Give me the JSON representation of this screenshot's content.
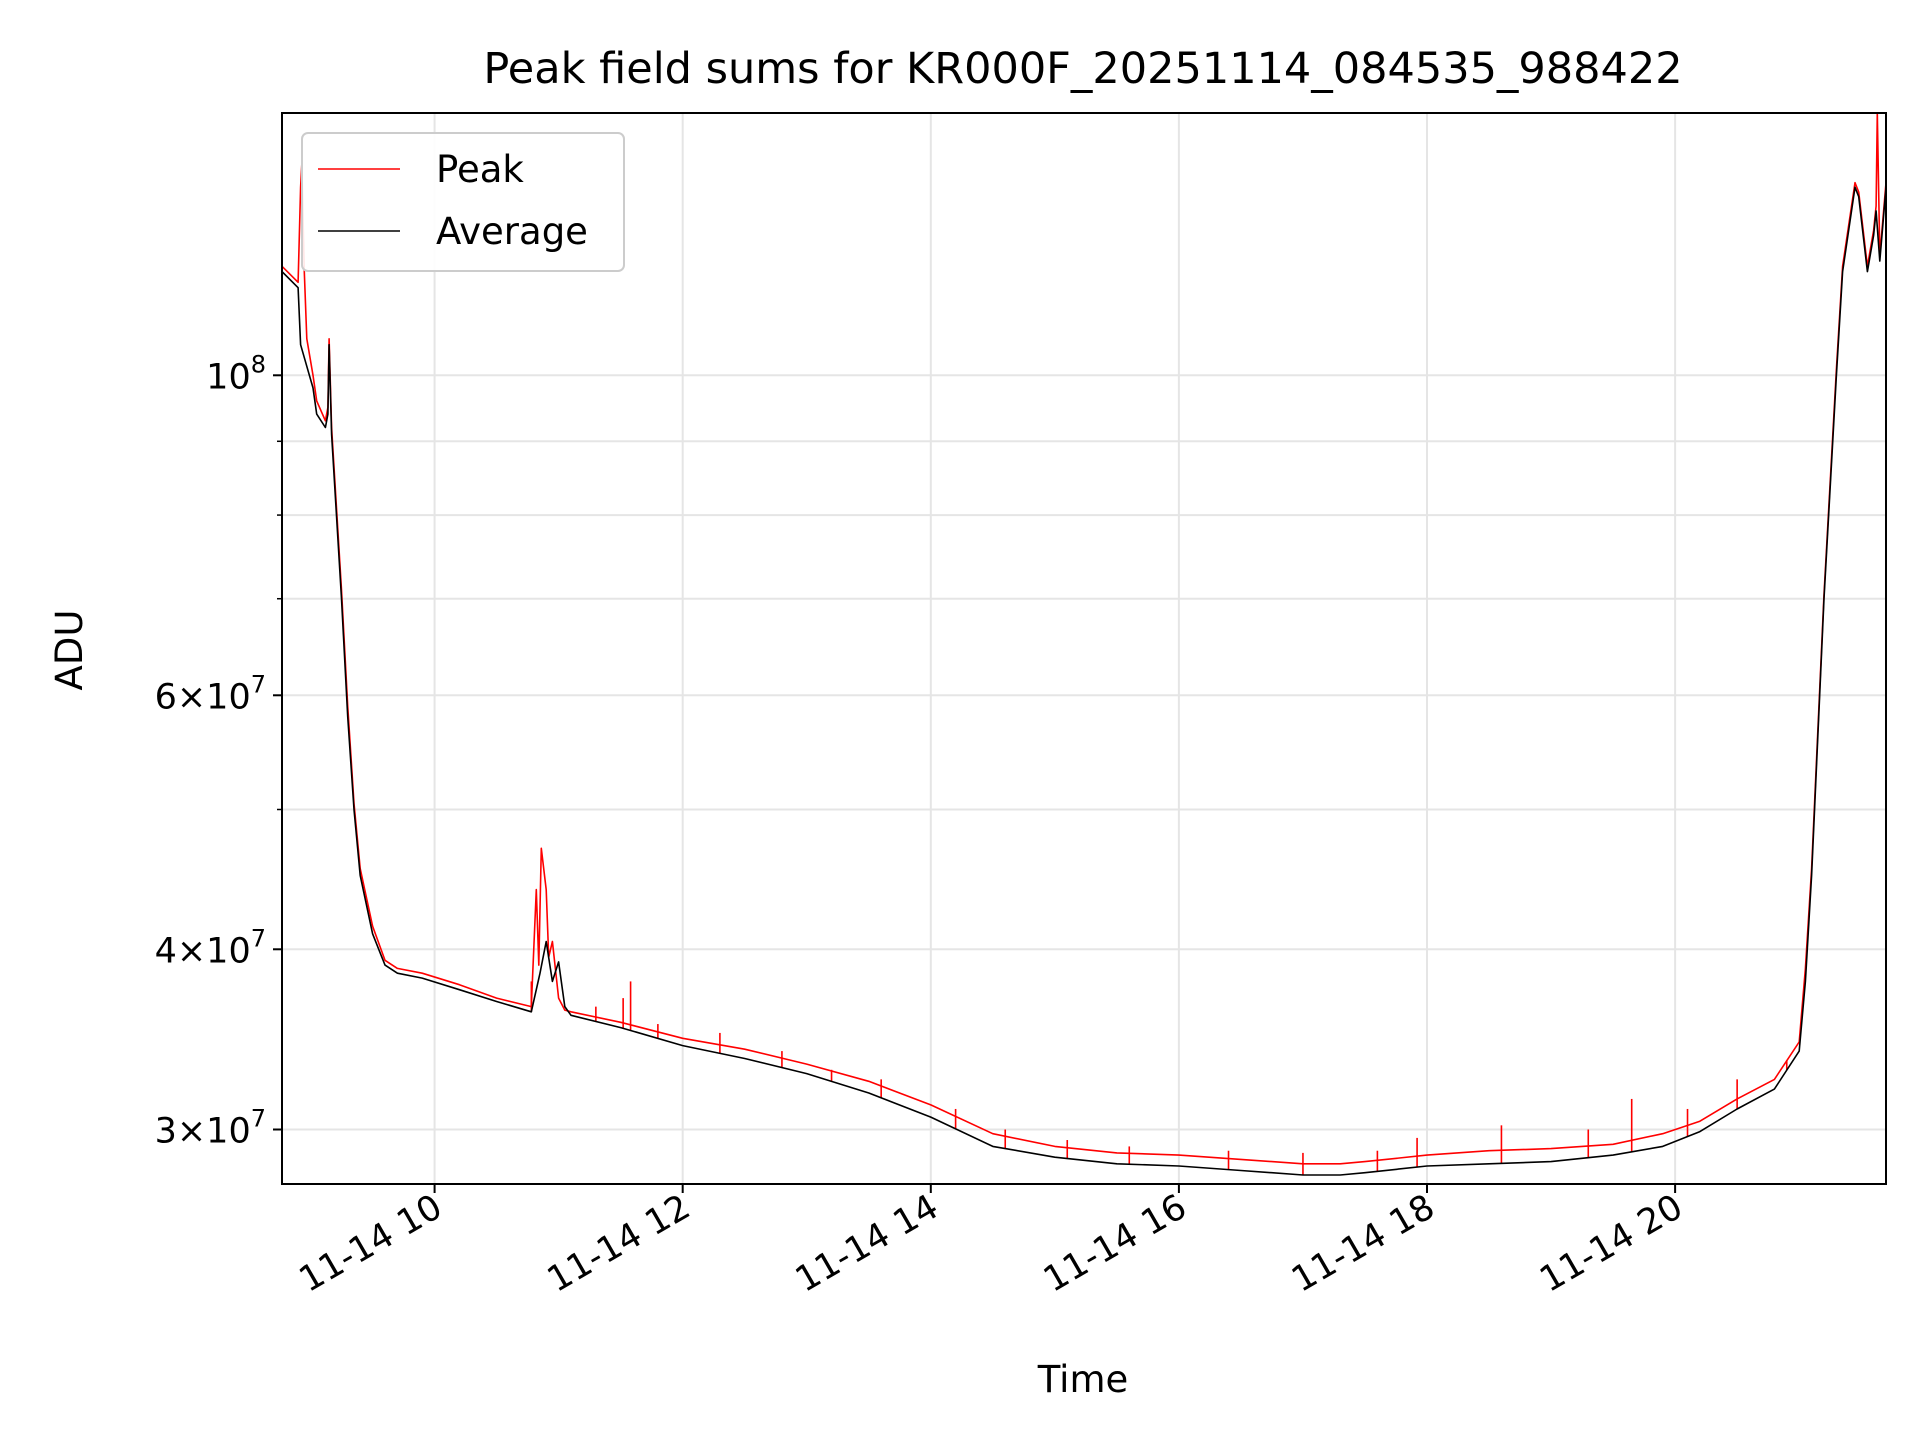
{
  "chart_data": {
    "type": "line",
    "title": "Peak field sums for KR000F_20251114_084535_988422",
    "xlabel": "Time",
    "ylabel": "ADU",
    "yscale": "log",
    "x_unit": "hours since 11-14 00:00",
    "xlim": [
      8.77,
      21.7
    ],
    "ylim": [
      27500000,
      152000000
    ],
    "grid": true,
    "legend_position": "upper-left",
    "x_ticks": [
      {
        "value": 10,
        "label": "11-14 10"
      },
      {
        "value": 12,
        "label": "11-14 12"
      },
      {
        "value": 14,
        "label": "11-14 14"
      },
      {
        "value": 16,
        "label": "11-14 16"
      },
      {
        "value": 18,
        "label": "11-14 18"
      },
      {
        "value": 20,
        "label": "11-14 20"
      }
    ],
    "y_ticks": [
      {
        "value": 30000000,
        "base": "3",
        "exp": "7"
      },
      {
        "value": 40000000,
        "base": "4",
        "exp": "7"
      },
      {
        "value": 60000000,
        "base": "6",
        "exp": "7"
      },
      {
        "value": 100000000,
        "base": "10",
        "exp": "8"
      }
    ],
    "y_minor": [
      50000000,
      70000000,
      80000000,
      90000000
    ],
    "series": [
      {
        "name": "Average",
        "color": "#000000",
        "x": [
          8.77,
          8.9,
          8.92,
          9.02,
          9.05,
          9.12,
          9.14,
          9.15,
          9.17,
          9.25,
          9.3,
          9.35,
          9.4,
          9.5,
          9.6,
          9.7,
          9.9,
          10.2,
          10.5,
          10.78,
          10.85,
          10.9,
          10.95,
          11.0,
          11.05,
          11.1,
          11.5,
          12.0,
          12.5,
          13.0,
          13.5,
          14.0,
          14.5,
          15.0,
          15.5,
          16.0,
          16.5,
          17.0,
          17.3,
          17.5,
          18.0,
          18.5,
          19.0,
          19.5,
          19.9,
          20.2,
          20.5,
          20.8,
          21.0,
          21.05,
          21.1,
          21.2,
          21.3,
          21.35,
          21.45,
          21.48,
          21.55,
          21.6,
          21.62,
          21.65,
          21.7
        ],
        "y": [
          118000000,
          115000000,
          105000000,
          98000000,
          94000000,
          92000000,
          94000000,
          105000000,
          91000000,
          70000000,
          58000000,
          50000000,
          45000000,
          41000000,
          39000000,
          38500000,
          38200000,
          37500000,
          36800000,
          36200000,
          38500000,
          40500000,
          38000000,
          39200000,
          36500000,
          36000000,
          35300000,
          34300000,
          33600000,
          32800000,
          31800000,
          30600000,
          29200000,
          28700000,
          28400000,
          28300000,
          28100000,
          27900000,
          27900000,
          28000000,
          28300000,
          28400000,
          28500000,
          28800000,
          29200000,
          29900000,
          31000000,
          32000000,
          34000000,
          38000000,
          45000000,
          70000000,
          100000000,
          118000000,
          135000000,
          133000000,
          118000000,
          125000000,
          130000000,
          120000000,
          135000000
        ]
      },
      {
        "name": "Peak",
        "color": "#ff0000",
        "x": [
          8.77,
          8.9,
          8.92,
          8.93,
          8.95,
          8.97,
          9.02,
          9.05,
          9.12,
          9.14,
          9.15,
          9.17,
          9.25,
          9.3,
          9.35,
          9.4,
          9.5,
          9.6,
          9.7,
          9.9,
          10.2,
          10.5,
          10.78,
          10.82,
          10.84,
          10.86,
          10.9,
          10.92,
          10.95,
          11.0,
          11.05,
          11.1,
          11.5,
          12.0,
          12.5,
          13.0,
          13.5,
          14.0,
          14.5,
          15.0,
          15.5,
          16.0,
          16.5,
          17.0,
          17.3,
          17.5,
          18.0,
          18.5,
          19.0,
          19.5,
          19.9,
          20.2,
          20.5,
          20.8,
          21.0,
          21.05,
          21.1,
          21.2,
          21.3,
          21.35,
          21.45,
          21.48,
          21.55,
          21.6,
          21.62,
          21.63,
          21.65,
          21.7
        ],
        "y": [
          119000000,
          116000000,
          135000000,
          140000000,
          118000000,
          106000000,
          100000000,
          96000000,
          93000000,
          95000000,
          106000000,
          92000000,
          71000000,
          59000000,
          50500000,
          45500000,
          41500000,
          39300000,
          38800000,
          38500000,
          37800000,
          37000000,
          36500000,
          44000000,
          39000000,
          47000000,
          44000000,
          39500000,
          40500000,
          37000000,
          36300000,
          36200000,
          35600000,
          34700000,
          34100000,
          33300000,
          32400000,
          31200000,
          29800000,
          29200000,
          28900000,
          28800000,
          28600000,
          28400000,
          28400000,
          28500000,
          28800000,
          29000000,
          29100000,
          29300000,
          29800000,
          30400000,
          31500000,
          32500000,
          34500000,
          38800000,
          45500000,
          70500000,
          101000000,
          119000000,
          136000000,
          134000000,
          119000000,
          126000000,
          131000000,
          152000000,
          121000000,
          136000000
        ]
      }
    ],
    "peak_spikes": [
      {
        "x": 10.78,
        "y": 38000000
      },
      {
        "x": 11.3,
        "y": 36500000
      },
      {
        "x": 11.52,
        "y": 37000000
      },
      {
        "x": 11.58,
        "y": 38000000
      },
      {
        "x": 11.8,
        "y": 35500000
      },
      {
        "x": 12.3,
        "y": 35000000
      },
      {
        "x": 12.8,
        "y": 34000000
      },
      {
        "x": 13.2,
        "y": 33000000
      },
      {
        "x": 13.6,
        "y": 32500000
      },
      {
        "x": 14.2,
        "y": 31000000
      },
      {
        "x": 14.6,
        "y": 30000000
      },
      {
        "x": 15.1,
        "y": 29500000
      },
      {
        "x": 15.6,
        "y": 29200000
      },
      {
        "x": 16.4,
        "y": 29000000
      },
      {
        "x": 17.0,
        "y": 28900000
      },
      {
        "x": 17.6,
        "y": 29000000
      },
      {
        "x": 17.92,
        "y": 29600000
      },
      {
        "x": 18.6,
        "y": 30200000
      },
      {
        "x": 19.3,
        "y": 30000000
      },
      {
        "x": 19.65,
        "y": 31500000
      },
      {
        "x": 20.1,
        "y": 31000000
      },
      {
        "x": 20.5,
        "y": 32500000
      },
      {
        "x": 20.9,
        "y": 33500000
      }
    ]
  }
}
